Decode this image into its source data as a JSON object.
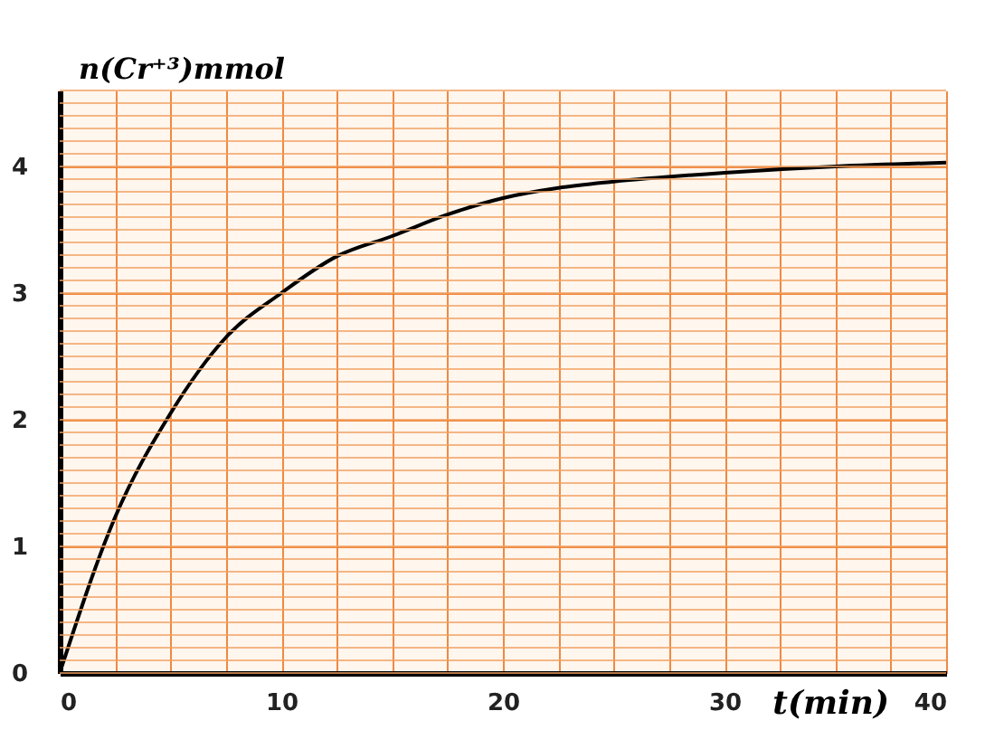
{
  "chart_data": {
    "type": "line",
    "xlabel": "t(min)",
    "ylabel": "n(Cr⁺³)mmol",
    "x": [
      0,
      2.5,
      5,
      7.5,
      10,
      12.5,
      15,
      17.5,
      20,
      22.5,
      25,
      30,
      35,
      40
    ],
    "series": [
      {
        "color": "#000000",
        "values": [
          0,
          1.23,
          2.05,
          2.65,
          3.0,
          3.29,
          3.45,
          3.62,
          3.75,
          3.83,
          3.88,
          3.95,
          4.0,
          4.03
        ]
      }
    ],
    "xlim": [
      0,
      40
    ],
    "ylim": [
      0,
      4.6
    ],
    "xticks": [
      0,
      {
        "value": 2.5,
        "label": null
      },
      {
        "value": 5,
        "label": null
      },
      {
        "value": 7.5,
        "label": null
      },
      10,
      {
        "value": 12.5,
        "label": null
      },
      {
        "value": 15,
        "label": null
      },
      {
        "value": 17.5,
        "label": null
      },
      20,
      {
        "value": 22.5,
        "label": null
      },
      {
        "value": 25,
        "label": null
      },
      {
        "value": 27.5,
        "label": null
      },
      30,
      {
        "value": 32.5,
        "label": null
      },
      {
        "value": 35,
        "label": null
      },
      {
        "value": 37.5,
        "label": null
      },
      40
    ],
    "yticks": [
      0,
      {
        "value": 0.5,
        "label": null
      },
      1,
      {
        "value": 1.5,
        "label": null
      },
      2,
      {
        "value": 2.5,
        "label": null
      },
      3,
      {
        "value": 3.5,
        "label": null
      },
      4,
      {
        "value": 4.5,
        "label": null
      }
    ],
    "grid": true,
    "marker": "none",
    "line_style": "solid"
  }
}
